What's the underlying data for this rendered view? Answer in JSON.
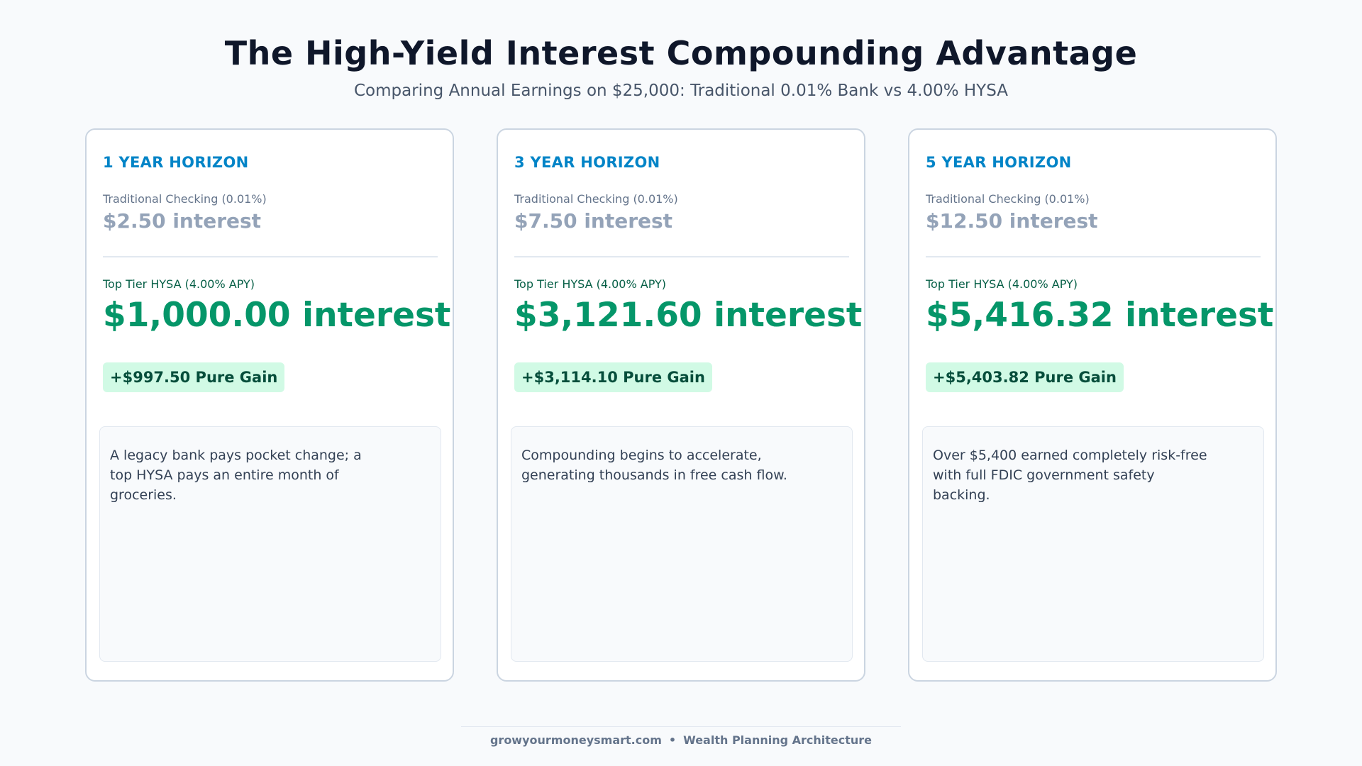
{
  "header": {
    "title": "The High-Yield Interest Compounding Advantage",
    "subtitle": "Comparing Annual Earnings on $25,000: Traditional 0.01% Bank vs 4.00% HYSA"
  },
  "cards": [
    {
      "horizon": "1 YEAR HORIZON",
      "traditional_label": "Traditional Checking (0.01%)",
      "traditional_value": "$2.50 interest",
      "hysa_label": "Top Tier HYSA (4.00% APY)",
      "hysa_value": "$1,000.00 interest",
      "gain": "+$997.50 Pure Gain",
      "note": "A legacy bank pays pocket change; a top HYSA pays an entire month of groceries."
    },
    {
      "horizon": "3 YEAR HORIZON",
      "traditional_label": "Traditional Checking (0.01%)",
      "traditional_value": "$7.50 interest",
      "hysa_label": "Top Tier HYSA (4.00% APY)",
      "hysa_value": "$3,121.60 interest",
      "gain": "+$3,114.10 Pure Gain",
      "note": "Compounding begins to accelerate, generating thousands in free cash flow."
    },
    {
      "horizon": "5 YEAR HORIZON",
      "traditional_label": "Traditional Checking (0.01%)",
      "traditional_value": "$12.50 interest",
      "hysa_label": "Top Tier HYSA (4.00% APY)",
      "hysa_value": "$5,416.32 interest",
      "gain": "+$5,403.82 Pure Gain",
      "note": "Over $5,400 earned completely risk-free with full FDIC government safety backing."
    }
  ],
  "footer": {
    "site": "growyourmoneysmart.com",
    "separator": "•",
    "tagline": "Wealth Planning Architecture"
  },
  "colors": {
    "accent_blue": "#0284c7",
    "gain_green": "#059669",
    "badge_bg": "#d1fae5",
    "muted_gray": "#94a3b8"
  }
}
